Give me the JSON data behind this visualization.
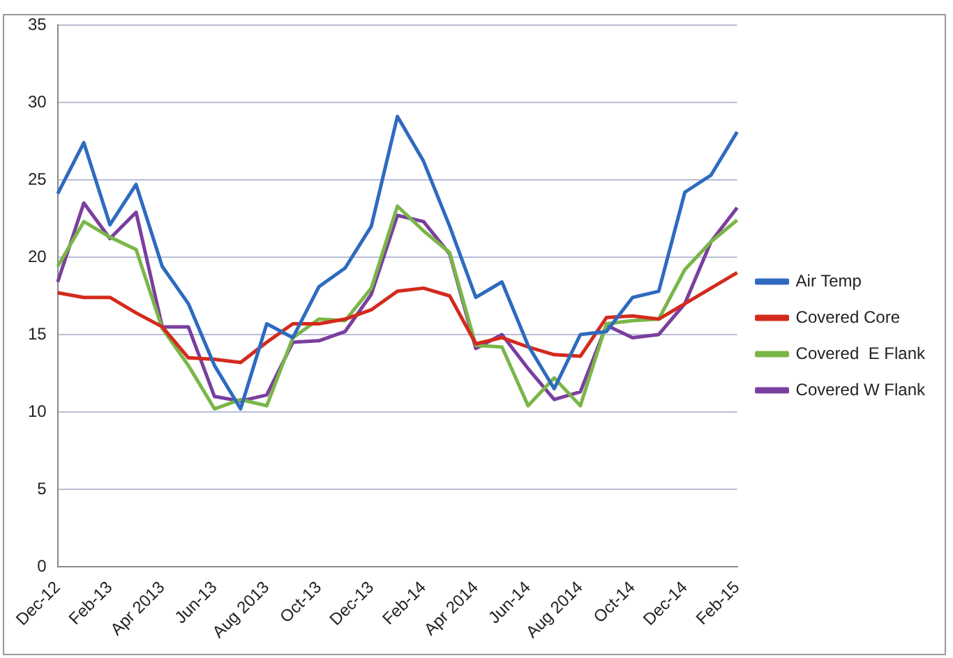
{
  "chart_data": {
    "type": "line",
    "categories": [
      "Dec-12",
      null,
      "Feb-13",
      null,
      "Apr 2013",
      null,
      "Jun-13",
      null,
      "Aug 2013",
      null,
      "Oct-13",
      null,
      "Dec-13",
      null,
      "Feb-14",
      null,
      "Apr 2014",
      null,
      "Jun-14",
      null,
      "Aug 2014",
      null,
      "Oct-14",
      null,
      "Dec-14",
      null,
      "Feb-15"
    ],
    "series": [
      {
        "name": "Air Temp",
        "color": "#2e6bbf",
        "values": [
          24.1,
          27.4,
          22.1,
          24.7,
          19.4,
          17.0,
          13.0,
          10.2,
          15.7,
          14.8,
          18.1,
          19.3,
          22.0,
          29.1,
          26.2,
          22.0,
          17.4,
          18.4,
          14.3,
          11.5,
          15.0,
          15.2,
          17.4,
          17.8,
          24.2,
          25.3,
          28.1
        ]
      },
      {
        "name": "Covered Core",
        "color": "#d42a1e",
        "values": [
          17.7,
          17.4,
          17.4,
          16.4,
          15.5,
          13.5,
          13.4,
          13.2,
          14.5,
          15.7,
          15.7,
          16.0,
          16.6,
          17.8,
          18.0,
          17.5,
          14.4,
          14.8,
          14.2,
          13.7,
          13.6,
          16.1,
          16.2,
          16.0,
          17.0,
          18.0,
          19.0
        ]
      },
      {
        "name": "Covered  E Flank",
        "color": "#7ab648",
        "values": [
          19.4,
          22.3,
          21.3,
          20.5,
          15.4,
          13.0,
          10.2,
          10.8,
          10.4,
          14.8,
          16.0,
          15.9,
          18.0,
          23.3,
          21.7,
          20.3,
          14.3,
          14.2,
          10.4,
          12.2,
          10.4,
          15.7,
          15.9,
          16.0,
          19.2,
          21.0,
          22.4
        ]
      },
      {
        "name": "Covered W Flank",
        "color": "#7a3f9e",
        "values": [
          18.4,
          23.5,
          21.2,
          22.9,
          15.5,
          15.5,
          11.0,
          10.7,
          11.1,
          14.5,
          14.6,
          15.2,
          17.6,
          22.7,
          22.3,
          20.2,
          14.1,
          15.0,
          12.8,
          10.8,
          11.3,
          15.6,
          14.8,
          15.0,
          17.0,
          21.0,
          23.2
        ]
      }
    ],
    "ylim": [
      0,
      35
    ],
    "yticks": [
      0,
      5,
      10,
      15,
      20,
      25,
      30,
      35
    ],
    "grid": "y",
    "legend": "right",
    "marker": "none",
    "line_style": "solid"
  }
}
